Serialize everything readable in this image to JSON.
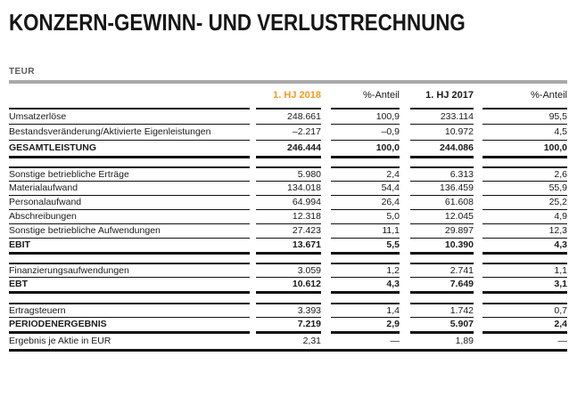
{
  "page": {
    "title": "KONZERN-GEWINN- UND VERLUSTRECHNUNG",
    "unit_label": "TEUR"
  },
  "colors": {
    "accent_orange": "#F5981E",
    "rule_black": "#111111",
    "divider_gray": "#A9A9A9",
    "muted_text_gray": "#5A5A5A"
  },
  "table": {
    "header": {
      "col1": "1. HJ 2018",
      "col2": "%-Anteil",
      "col3": "1. HJ 2017",
      "col4": "%-Anteil"
    },
    "sections": [
      {
        "rows": [
          {
            "label": "Umsatzerlöse",
            "v1": "248.661",
            "p1": "100,9",
            "v2": "233.114",
            "p2": "95,5"
          },
          {
            "label": "Bestandsveränderung/Aktivierte Eigenleistungen",
            "v1": "–2.217",
            "p1": "–0,9",
            "v2": "10.972",
            "p2": "4,5"
          },
          {
            "label": "GESAMTLEISTUNG",
            "v1": "246.444",
            "p1": "100,0",
            "v2": "244.086",
            "p2": "100,0"
          }
        ]
      },
      {
        "rows": [
          {
            "label": "Sonstige betriebliche Erträge",
            "v1": "5.980",
            "p1": "2,4",
            "v2": "6.313",
            "p2": "2,6"
          },
          {
            "label": "Materialaufwand",
            "v1": "134.018",
            "p1": "54,4",
            "v2": "136.459",
            "p2": "55,9"
          },
          {
            "label": "Personalaufwand",
            "v1": "64.994",
            "p1": "26,4",
            "v2": "61.608",
            "p2": "25,2"
          },
          {
            "label": "Abschreibungen",
            "v1": "12.318",
            "p1": "5,0",
            "v2": "12.045",
            "p2": "4,9"
          },
          {
            "label": "Sonstige betriebliche Aufwendungen",
            "v1": "27.423",
            "p1": "11,1",
            "v2": "29.897",
            "p2": "12,3"
          },
          {
            "label": "EBIT",
            "v1": "13.671",
            "p1": "5,5",
            "v2": "10.390",
            "p2": "4,3"
          }
        ]
      },
      {
        "rows": [
          {
            "label": "Finanzierungsaufwendungen",
            "v1": "3.059",
            "p1": "1,2",
            "v2": "2.741",
            "p2": "1,1"
          },
          {
            "label": "EBT",
            "v1": "10.612",
            "p1": "4,3",
            "v2": "7.649",
            "p2": "3,1"
          }
        ]
      },
      {
        "rows": [
          {
            "label": "Ertragsteuern",
            "v1": "3.393",
            "p1": "1,4",
            "v2": "1.742",
            "p2": "0,7"
          },
          {
            "label": "PERIODENERGEBNIS",
            "v1": "7.219",
            "p1": "2,9",
            "v2": "5.907",
            "p2": "2,4"
          }
        ]
      }
    ],
    "eps_row": {
      "label": "Ergebnis je Aktie in EUR",
      "v1": "2,31",
      "p1": "—",
      "v2": "1,89",
      "p2": "—"
    }
  }
}
